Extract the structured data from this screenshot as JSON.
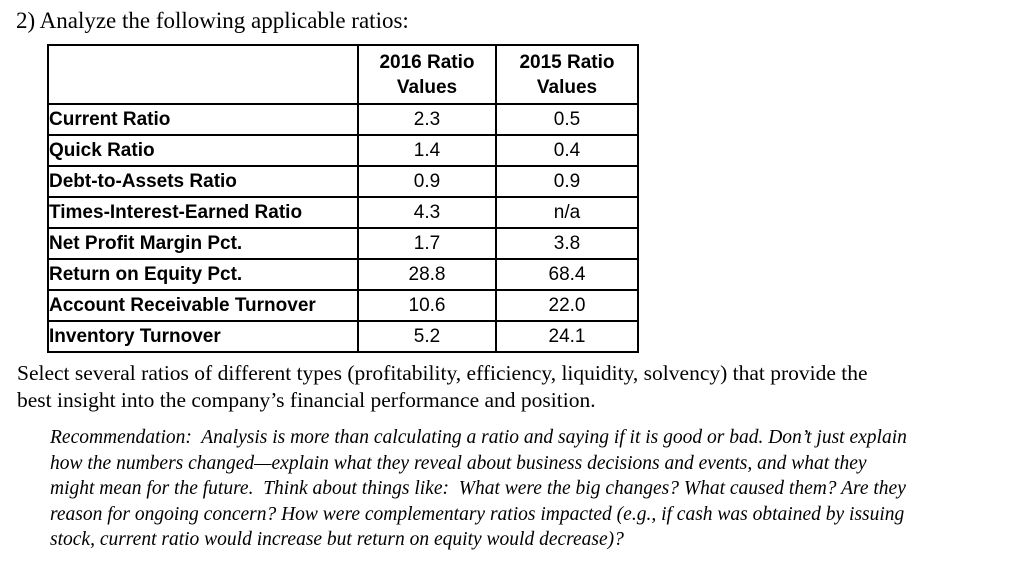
{
  "page": {
    "heading": "2) Analyze the following applicable ratios:",
    "select_text": "Select several ratios of different types (profitability, efficiency, liquidity, solvency) that provide the best insight into the company’s financial performance and position.",
    "recommendation_text": "Recommendation:  Analysis is more than calculating a ratio and saying if it is good or bad. Don’t just explain how the numbers changed—explain what they reveal about business decisions and events, and what they might mean for the future.  Think about things like:  What were the big changes? What caused them? Are they reason for ongoing concern? How were complementary ratios impacted (e.g., if cash was obtained by issuing stock, current ratio would increase but return on equity would decrease)?"
  },
  "table": {
    "headers": [
      "",
      "2016 Ratio Values",
      "2015 Ratio Values"
    ],
    "rows": [
      {
        "label": "Current Ratio",
        "r2016": "2.3",
        "r2015": "0.5"
      },
      {
        "label": "Quick Ratio",
        "r2016": "1.4",
        "r2015": "0.4"
      },
      {
        "label": "Debt-to-Assets Ratio",
        "r2016": "0.9",
        "r2015": "0.9"
      },
      {
        "label": "Times-Interest-Earned Ratio",
        "r2016": "4.3",
        "r2015": "n/a"
      },
      {
        "label": "Net Profit Margin Pct.",
        "r2016": "1.7",
        "r2015": "3.8"
      },
      {
        "label": "Return on Equity Pct.",
        "r2016": "28.8",
        "r2015": "68.4"
      },
      {
        "label": "Account Receivable Turnover",
        "r2016": "10.6",
        "r2015": "22.0"
      },
      {
        "label": "Inventory Turnover",
        "r2016": "5.2",
        "r2015": "24.1"
      }
    ]
  }
}
